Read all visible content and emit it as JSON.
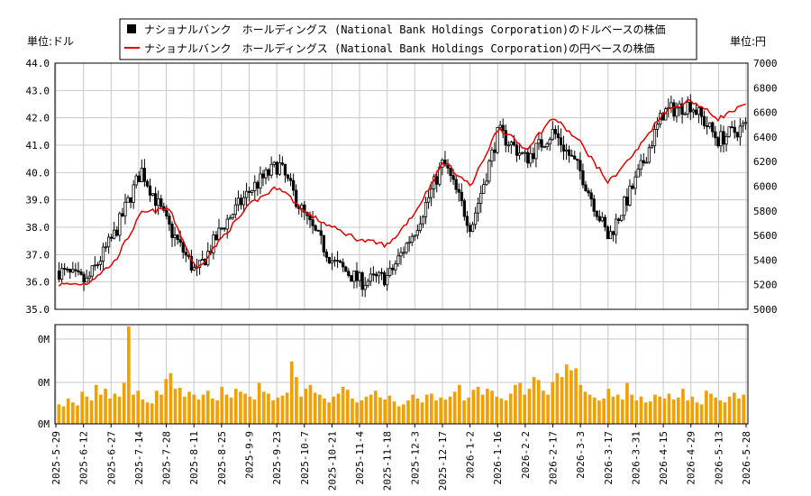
{
  "chart_data": [
    {
      "type": "candlestick+line",
      "y_left_unit": "単位:ドル",
      "y_right_unit": "単位:円",
      "ylim_left": [
        35.0,
        44.0
      ],
      "ylim_right": [
        5000,
        7000
      ],
      "yticks_left": [
        "35.0",
        "36.0",
        "37.0",
        "38.0",
        "39.0",
        "40.0",
        "41.0",
        "42.0",
        "43.0",
        "44.0"
      ],
      "yticks_right": [
        "5000",
        "5200",
        "5400",
        "5600",
        "5800",
        "6000",
        "6200",
        "6400",
        "6600",
        "6800",
        "7000"
      ],
      "grid": true,
      "legend_position": "top-center",
      "legend": [
        {
          "label": "ナショナルバンク　ホールディングス (National Bank Holdings Corporation)のドルベースの株価",
          "color": "#000000",
          "marker": "square"
        },
        {
          "label": "ナショナルバンク　ホールディングス (National Bank Holdings Corporation)の円ベースの株価",
          "color": "#e00000",
          "marker": "line"
        }
      ],
      "x_dates": [
        "2025-5-29",
        "2025-6-12",
        "2025-6-27",
        "2025-7-14",
        "2025-7-28",
        "2025-8-11",
        "2025-8-25",
        "2025-9-9",
        "2025-9-23",
        "2025-10-7",
        "2025-10-21",
        "2025-11-4",
        "2025-11-18",
        "2025-12-3",
        "2025-12-17",
        "2026-1-2",
        "2026-1-16",
        "2026-2-2",
        "2026-2-17",
        "2026-3-3",
        "2026-3-17",
        "2026-3-31",
        "2026-4-15",
        "2026-4-29",
        "2026-5-13",
        "2026-5-28"
      ],
      "usd_close": [
        36.4,
        36.0,
        37.7,
        40.1,
        38.0,
        36.3,
        38.1,
        39.4,
        40.3,
        38.3,
        36.7,
        36.0,
        36.2,
        38.0,
        40.4,
        38.0,
        41.5,
        40.5,
        41.5,
        40.0,
        37.6,
        39.7,
        42.2,
        42.5,
        41.2,
        41.7
      ],
      "jpy_close": [
        5200,
        5210,
        5380,
        5780,
        5820,
        5320,
        5600,
        5860,
        6000,
        5780,
        5660,
        5560,
        5520,
        5800,
        6200,
        6000,
        6480,
        6300,
        6560,
        6350,
        6030,
        6280,
        6600,
        6700,
        6550,
        6660
      ]
    },
    {
      "type": "bar",
      "ytick_labels": [
        "0M",
        "0M",
        "0M"
      ],
      "color": "#f0a000",
      "volume_relative": [
        0.2,
        0.18,
        0.26,
        0.22,
        0.19,
        0.33,
        0.28,
        0.24,
        0.4,
        0.3,
        0.36,
        0.26,
        0.31,
        0.28,
        0.42,
        1.0,
        0.3,
        0.34,
        0.25,
        0.22,
        0.21,
        0.34,
        0.3,
        0.46,
        0.52,
        0.36,
        0.37,
        0.28,
        0.33,
        0.3,
        0.25,
        0.3,
        0.34,
        0.26,
        0.24,
        0.38,
        0.3,
        0.27,
        0.36,
        0.33,
        0.31,
        0.28,
        0.25,
        0.42,
        0.33,
        0.31,
        0.24,
        0.27,
        0.29,
        0.32,
        0.64,
        0.48,
        0.28,
        0.36,
        0.4,
        0.32,
        0.3,
        0.26,
        0.22,
        0.28,
        0.31,
        0.38,
        0.35,
        0.26,
        0.22,
        0.24,
        0.28,
        0.3,
        0.34,
        0.27,
        0.25,
        0.29,
        0.23,
        0.18,
        0.2,
        0.24,
        0.3,
        0.26,
        0.22,
        0.3,
        0.31,
        0.24,
        0.27,
        0.25,
        0.28,
        0.33,
        0.4,
        0.24,
        0.27,
        0.35,
        0.38,
        0.3,
        0.36,
        0.34,
        0.28,
        0.26,
        0.24,
        0.31,
        0.4,
        0.42,
        0.3,
        0.36,
        0.48,
        0.45,
        0.34,
        0.3,
        0.43,
        0.52,
        0.48,
        0.61,
        0.55,
        0.57,
        0.4,
        0.33,
        0.3,
        0.27,
        0.24,
        0.26,
        0.36,
        0.28,
        0.3,
        0.25,
        0.42,
        0.3,
        0.24,
        0.28,
        0.22,
        0.23,
        0.3,
        0.28,
        0.26,
        0.31,
        0.25,
        0.27,
        0.36,
        0.24,
        0.28,
        0.22,
        0.2,
        0.34,
        0.31,
        0.27,
        0.24,
        0.22,
        0.28,
        0.32,
        0.26,
        0.3
      ]
    }
  ],
  "x_tick_labels": [
    "2025-5-29",
    "2025-6-12",
    "2025-6-27",
    "2025-7-14",
    "2025-7-28",
    "2025-8-11",
    "2025-8-25",
    "2025-9-9",
    "2025-9-23",
    "2025-10-7",
    "2025-10-21",
    "2025-11-4",
    "2025-11-18",
    "2025-12-3",
    "2025-12-17",
    "2026-1-2",
    "2026-1-16",
    "2026-2-2",
    "2026-2-17",
    "2026-3-3",
    "2026-3-17",
    "2026-3-31",
    "2026-4-15",
    "2026-4-29",
    "2026-5-13",
    "2026-5-28"
  ]
}
